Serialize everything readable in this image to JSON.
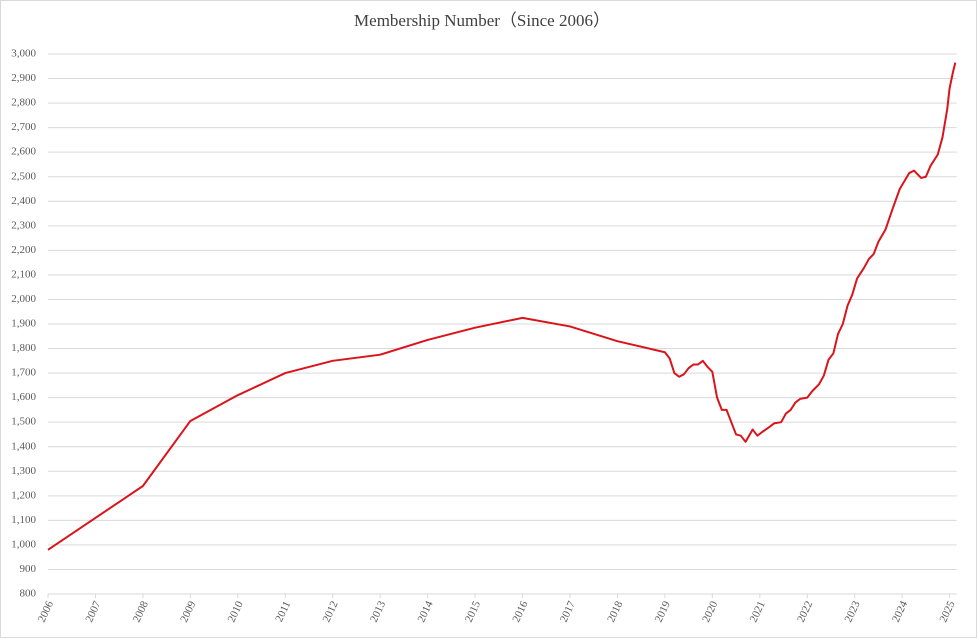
{
  "chart_data": {
    "type": "line",
    "title": "Membership Number（Since 2006）",
    "series": [
      {
        "name": "Membership",
        "color": "#d9141b",
        "x": [
          2006,
          2008,
          2009,
          2010,
          2011,
          2012,
          2013,
          2014,
          2015,
          2016,
          2017,
          2018,
          2019,
          2019.1,
          2019.2,
          2019.3,
          2019.4,
          2019.5,
          2019.6,
          2019.7,
          2019.8,
          2019.9,
          2020,
          2020.1,
          2020.2,
          2020.3,
          2020.4,
          2020.5,
          2020.6,
          2020.7,
          2020.85,
          2020.95,
          2021.05,
          2021.2,
          2021.3,
          2021.45,
          2021.55,
          2021.65,
          2021.75,
          2021.85,
          2022.0,
          2022.1,
          2022.25,
          2022.35,
          2022.45,
          2022.55,
          2022.65,
          2022.75,
          2022.85,
          2022.95,
          2023.05,
          2023.2,
          2023.3,
          2023.4,
          2023.5,
          2023.65,
          2023.8,
          2023.95,
          2024.15,
          2024.25,
          2024.4,
          2024.5,
          2024.6,
          2024.75,
          2024.85,
          2024.95,
          2025.0,
          2025.07,
          2025.12
        ],
        "values": [
          980,
          1240,
          1505,
          1610,
          1700,
          1750,
          1775,
          1835,
          1885,
          1925,
          1890,
          1830,
          1785,
          1760,
          1700,
          1685,
          1695,
          1720,
          1735,
          1735,
          1750,
          1725,
          1705,
          1600,
          1550,
          1550,
          1500,
          1450,
          1445,
          1420,
          1470,
          1445,
          1460,
          1480,
          1495,
          1500,
          1535,
          1550,
          1580,
          1595,
          1600,
          1625,
          1655,
          1690,
          1755,
          1780,
          1860,
          1900,
          1975,
          2020,
          2085,
          2130,
          2165,
          2185,
          2235,
          2285,
          2370,
          2450,
          2515,
          2525,
          2495,
          2500,
          2545,
          2590,
          2660,
          2775,
          2860,
          2925,
          2965
        ]
      }
    ],
    "xlim": [
      2006,
      2025.15
    ],
    "xticks": [
      2006,
      2007,
      2008,
      2009,
      2010,
      2011,
      2012,
      2013,
      2014,
      2015,
      2016,
      2017,
      2018,
      2019,
      2020,
      2021,
      2022,
      2023,
      2024,
      2025
    ],
    "ylim": [
      800,
      3000
    ],
    "yticks": [
      800,
      900,
      {
        "value": 1000,
        "label": "1,000"
      },
      {
        "value": 1100,
        "label": "1,100"
      },
      {
        "value": 1200,
        "label": "1,200"
      },
      {
        "value": 1300,
        "label": "1,300"
      },
      {
        "value": 1400,
        "label": "1,400"
      },
      {
        "value": 1500,
        "label": "1,500"
      },
      {
        "value": 1600,
        "label": "1,600"
      },
      {
        "value": 1700,
        "label": "1,700"
      },
      {
        "value": 1800,
        "label": "1,800"
      },
      {
        "value": 1900,
        "label": "1,900"
      },
      {
        "value": 2000,
        "label": "2,000"
      },
      {
        "value": 2100,
        "label": "2,100"
      },
      {
        "value": 2200,
        "label": "2,200"
      },
      {
        "value": 2300,
        "label": "2,300"
      },
      {
        "value": 2400,
        "label": "2,400"
      },
      {
        "value": 2500,
        "label": "2,500"
      },
      {
        "value": 2600,
        "label": "2,600"
      },
      {
        "value": 2700,
        "label": "2,700"
      },
      {
        "value": 2800,
        "label": "2,800"
      },
      {
        "value": 2900,
        "label": "2,900"
      },
      {
        "value": 3000,
        "label": "3,000"
      }
    ],
    "grid": true
  }
}
